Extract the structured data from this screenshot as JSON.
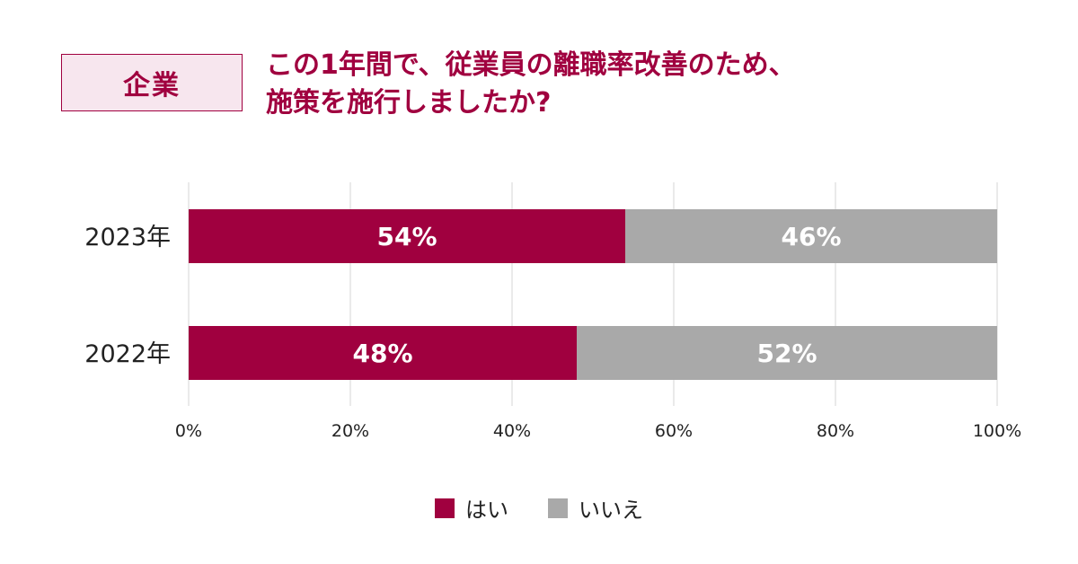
{
  "badge": "企業",
  "title_lines": [
    "この1年間で、従業員の離職率改善のため、",
    "施策を施行しましたか?"
  ],
  "colors": {
    "yes": "#a0003f",
    "no": "#a9a9a9",
    "grid": "#e3e3e3",
    "accent": "#a0003f"
  },
  "chart_data": {
    "type": "bar",
    "orientation": "horizontal",
    "stacked": true,
    "categories": [
      "2023年",
      "2022年"
    ],
    "series": [
      {
        "name": "はい",
        "values": [
          54,
          48
        ],
        "labels": [
          "54%",
          "48%"
        ]
      },
      {
        "name": "いいえ",
        "values": [
          46,
          52
        ],
        "labels": [
          "46%",
          "52%"
        ]
      }
    ],
    "xlim": [
      0,
      100
    ],
    "xticks": [
      "0%",
      "20%",
      "40%",
      "60%",
      "80%",
      "100%"
    ],
    "grid": true,
    "legend_position": "bottom-center"
  }
}
